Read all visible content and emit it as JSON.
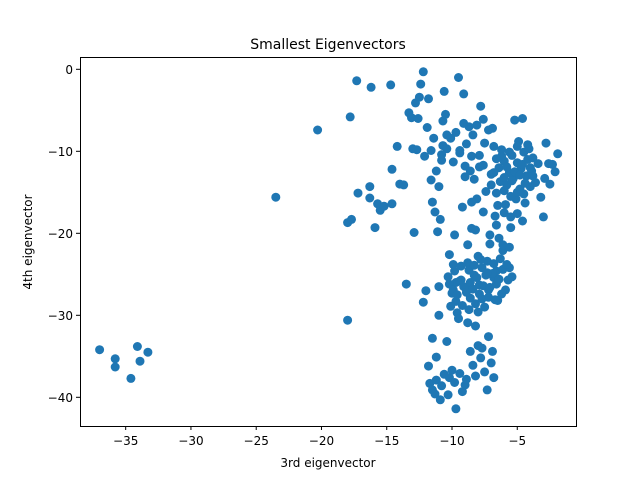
{
  "chart_data": {
    "type": "scatter",
    "title": "Smallest Eigenvectors",
    "xlabel": "3rd eigenvector",
    "ylabel": "4th eigenvector",
    "xlim": [
      -38.5,
      -0.5
    ],
    "ylim": [
      -43.5,
      1.5
    ],
    "xticks": [
      -35,
      -30,
      -25,
      -20,
      -15,
      -10,
      -5
    ],
    "xtick_labels": [
      "−35",
      "−30",
      "−25",
      "−20",
      "−15",
      "−10",
      "−5"
    ],
    "yticks": [
      0,
      -10,
      -20,
      -30,
      -40
    ],
    "ytick_labels": [
      "0",
      "−10",
      "−20",
      "−30",
      "−40"
    ],
    "grid": false,
    "color": "#1f77b4",
    "points": [
      [
        -37.0,
        -34.2
      ],
      [
        -35.8,
        -35.3
      ],
      [
        -35.8,
        -36.3
      ],
      [
        -34.6,
        -37.7
      ],
      [
        -34.1,
        -33.8
      ],
      [
        -33.9,
        -35.6
      ],
      [
        -33.3,
        -34.5
      ],
      [
        -23.5,
        -15.6
      ],
      [
        -20.3,
        -7.4
      ],
      [
        -18.0,
        -18.7
      ],
      [
        -17.7,
        -18.3
      ],
      [
        -17.8,
        -5.8
      ],
      [
        -18.0,
        -30.6
      ],
      [
        -17.3,
        -1.4
      ],
      [
        -17.2,
        -15.1
      ],
      [
        -16.3,
        -14.3
      ],
      [
        -16.3,
        -15.7
      ],
      [
        -16.2,
        -2.2
      ],
      [
        -15.9,
        -19.3
      ],
      [
        -15.7,
        -16.4
      ],
      [
        -15.5,
        -17.2
      ],
      [
        -15.2,
        -16.7
      ],
      [
        -14.7,
        -1.9
      ],
      [
        -14.6,
        -16.4
      ],
      [
        -14.6,
        -12.2
      ],
      [
        -14.2,
        -9.4
      ],
      [
        -14.0,
        -14.0
      ],
      [
        -13.7,
        -14.1
      ],
      [
        -13.5,
        -26.2
      ],
      [
        -13.3,
        -5.3
      ],
      [
        -13.1,
        -5.9
      ],
      [
        -13.0,
        -9.7
      ],
      [
        -12.9,
        -19.9
      ],
      [
        -12.8,
        -4.1
      ],
      [
        -12.7,
        -9.8
      ],
      [
        -12.6,
        -6.0
      ],
      [
        -12.5,
        -3.4
      ],
      [
        -12.4,
        -1.8
      ],
      [
        -12.2,
        -28.4
      ],
      [
        -12.2,
        -0.3
      ],
      [
        -12.1,
        -10.6
      ],
      [
        -12.0,
        -27.0
      ],
      [
        -11.9,
        -7.1
      ],
      [
        -11.8,
        -3.6
      ],
      [
        -11.6,
        -9.9
      ],
      [
        -11.5,
        -32.8
      ],
      [
        -11.4,
        -8.4
      ],
      [
        -11.2,
        -35.1
      ],
      [
        -11.8,
        -36.2
      ],
      [
        -11.7,
        -38.3
      ],
      [
        -11.5,
        -39.1
      ],
      [
        -11.3,
        -39.6
      ],
      [
        -11.2,
        -37.9
      ],
      [
        -10.9,
        -40.3
      ],
      [
        -10.8,
        -38.6
      ],
      [
        -10.6,
        -37.2
      ],
      [
        -10.4,
        -33.2
      ],
      [
        -10.3,
        -39.7
      ],
      [
        -10.2,
        -37.6
      ],
      [
        -10.0,
        -36.7
      ],
      [
        -9.8,
        -38.2
      ],
      [
        -9.7,
        -41.4
      ],
      [
        -9.4,
        -37.1
      ],
      [
        -9.2,
        -39.3
      ],
      [
        -9.0,
        -38.5
      ],
      [
        -8.9,
        -37.8
      ],
      [
        -8.6,
        -34.4
      ],
      [
        -8.4,
        -36.1
      ],
      [
        -8.2,
        -37.4
      ],
      [
        -8.0,
        -33.7
      ],
      [
        -7.8,
        -35.2
      ],
      [
        -7.7,
        -34.0
      ],
      [
        -7.5,
        -36.9
      ],
      [
        -7.3,
        -39.1
      ],
      [
        -7.2,
        -32.6
      ],
      [
        -7.0,
        -35.8
      ],
      [
        -6.9,
        -34.4
      ],
      [
        -6.8,
        -37.6
      ],
      [
        -11.6,
        -13.5
      ],
      [
        -11.5,
        -16.2
      ],
      [
        -11.3,
        -17.4
      ],
      [
        -11.1,
        -19.8
      ],
      [
        -11.0,
        -26.5
      ],
      [
        -11.0,
        -30.0
      ],
      [
        -10.9,
        -18.3
      ],
      [
        -10.8,
        -11.1
      ],
      [
        -10.7,
        -9.3
      ],
      [
        -10.7,
        -6.3
      ],
      [
        -10.6,
        -2.7
      ],
      [
        -10.5,
        -5.5
      ],
      [
        -10.4,
        -8.0
      ],
      [
        -10.3,
        -25.3
      ],
      [
        -10.2,
        -22.6
      ],
      [
        -10.1,
        -28.9
      ],
      [
        -10.0,
        -27.3
      ],
      [
        -9.9,
        -23.8
      ],
      [
        -9.8,
        -20.2
      ],
      [
        -9.7,
        -26.0
      ],
      [
        -9.6,
        -29.7
      ],
      [
        -9.5,
        -1.0
      ],
      [
        -9.4,
        -10.2
      ],
      [
        -9.3,
        -25.7
      ],
      [
        -9.2,
        -16.8
      ],
      [
        -9.1,
        -3.0
      ],
      [
        -9.0,
        -13.1
      ],
      [
        -8.9,
        -26.8
      ],
      [
        -8.8,
        -21.4
      ],
      [
        -8.7,
        -24.5
      ],
      [
        -8.6,
        -27.9
      ],
      [
        -8.5,
        -19.4
      ],
      [
        -8.4,
        -8.0
      ],
      [
        -8.3,
        -25.1
      ],
      [
        -8.2,
        -31.3
      ],
      [
        -8.1,
        -15.8
      ],
      [
        -8.0,
        -22.8
      ],
      [
        -7.9,
        -26.3
      ],
      [
        -7.8,
        -4.5
      ],
      [
        -7.7,
        -24.2
      ],
      [
        -7.6,
        -11.7
      ],
      [
        -7.5,
        -29.0
      ],
      [
        -7.4,
        -14.9
      ],
      [
        -7.3,
        -23.4
      ],
      [
        -7.2,
        -26.9
      ],
      [
        -7.1,
        -21.3
      ],
      [
        -7.0,
        -12.8
      ],
      [
        -6.9,
        -7.2
      ],
      [
        -6.8,
        -25.4
      ],
      [
        -6.7,
        -17.9
      ],
      [
        -6.6,
        -24.6
      ],
      [
        -6.5,
        -28.2
      ],
      [
        -6.4,
        -20.6
      ],
      [
        -6.3,
        -13.7
      ],
      [
        -6.2,
        -9.8
      ],
      [
        -6.1,
        -22.1
      ],
      [
        -6.0,
        -11.2
      ],
      [
        -5.9,
        -16.5
      ],
      [
        -5.8,
        -14.1
      ],
      [
        -5.7,
        -25.7
      ],
      [
        -5.6,
        -12.6
      ],
      [
        -5.5,
        -19.3
      ],
      [
        -5.4,
        -10.5
      ],
      [
        -5.3,
        -13.3
      ],
      [
        -5.2,
        -6.2
      ],
      [
        -5.1,
        -15.8
      ],
      [
        -5.0,
        -11.4
      ],
      [
        -4.9,
        -8.8
      ],
      [
        -4.8,
        -14.6
      ],
      [
        -4.7,
        -12.1
      ],
      [
        -4.6,
        -6.0
      ],
      [
        -4.5,
        -10.1
      ],
      [
        -4.4,
        -16.3
      ],
      [
        -4.3,
        -13.0
      ],
      [
        -4.2,
        -11.0
      ],
      [
        -4.1,
        -9.7
      ],
      [
        -4.0,
        -14.3
      ],
      [
        -3.9,
        -12.4
      ],
      [
        -3.8,
        -10.8
      ],
      [
        -3.6,
        -13.8
      ],
      [
        -3.4,
        -11.5
      ],
      [
        -3.2,
        -15.6
      ],
      [
        -3.0,
        -18.0
      ],
      [
        -2.9,
        -13.3
      ],
      [
        -2.8,
        -9.0
      ],
      [
        -2.6,
        -11.5
      ],
      [
        -2.5,
        -14.0
      ],
      [
        -2.3,
        -11.6
      ],
      [
        -2.1,
        -12.5
      ],
      [
        -1.9,
        -10.3
      ],
      [
        -10.2,
        -26.2
      ],
      [
        -9.9,
        -26.9
      ],
      [
        -9.6,
        -27.5
      ],
      [
        -9.4,
        -25.8
      ],
      [
        -9.1,
        -26.5
      ],
      [
        -8.9,
        -27.2
      ],
      [
        -8.6,
        -26.0
      ],
      [
        -8.4,
        -26.8
      ],
      [
        -8.1,
        -25.4
      ],
      [
        -7.9,
        -27.4
      ],
      [
        -7.6,
        -26.4
      ],
      [
        -7.4,
        -25.1
      ],
      [
        -7.1,
        -26.6
      ],
      [
        -6.9,
        -24.9
      ],
      [
        -6.6,
        -26.2
      ],
      [
        -6.4,
        -25.6
      ],
      [
        -6.1,
        -24.4
      ],
      [
        -5.9,
        -26.9
      ],
      [
        -5.6,
        -24.2
      ],
      [
        -5.4,
        -25.3
      ],
      [
        -9.8,
        -24.6
      ],
      [
        -9.3,
        -24.0
      ],
      [
        -8.8,
        -23.6
      ],
      [
        -8.3,
        -23.9
      ],
      [
        -7.8,
        -23.2
      ],
      [
        -7.3,
        -24.8
      ],
      [
        -6.8,
        -23.7
      ],
      [
        -6.3,
        -23.1
      ],
      [
        -5.8,
        -23.8
      ],
      [
        -9.7,
        -28.3
      ],
      [
        -9.2,
        -28.8
      ],
      [
        -8.7,
        -29.3
      ],
      [
        -8.2,
        -28.6
      ],
      [
        -7.7,
        -28.0
      ],
      [
        -7.2,
        -27.8
      ],
      [
        -6.7,
        -28.1
      ],
      [
        -6.2,
        -27.4
      ],
      [
        -9.5,
        -30.4
      ],
      [
        -8.8,
        -30.9
      ],
      [
        -8.0,
        -29.6
      ],
      [
        -6.4,
        -12.0
      ],
      [
        -6.2,
        -10.6
      ],
      [
        -6.0,
        -13.2
      ],
      [
        -5.8,
        -11.9
      ],
      [
        -5.6,
        -10.1
      ],
      [
        -5.4,
        -13.6
      ],
      [
        -5.2,
        -12.5
      ],
      [
        -5.0,
        -9.4
      ],
      [
        -4.8,
        -12.9
      ],
      [
        -4.6,
        -11.6
      ],
      [
        -4.4,
        -13.9
      ],
      [
        -4.2,
        -9.2
      ],
      [
        -4.0,
        -12.0
      ],
      [
        -3.8,
        -13.0
      ],
      [
        -6.6,
        -15.1
      ],
      [
        -6.0,
        -14.8
      ],
      [
        -5.5,
        -15.5
      ],
      [
        -5.0,
        -15.0
      ],
      [
        -4.5,
        -15.2
      ],
      [
        -6.8,
        -9.4
      ],
      [
        -6.6,
        -10.9
      ],
      [
        -7.0,
        -14.1
      ],
      [
        -6.8,
        -12.6
      ],
      [
        -6.5,
        -16.6
      ],
      [
        -6.0,
        -17.5
      ],
      [
        -5.5,
        -18.0
      ],
      [
        -5.0,
        -17.6
      ],
      [
        -4.6,
        -18.5
      ],
      [
        -7.1,
        -20.2
      ],
      [
        -6.6,
        -19.0
      ],
      [
        -6.1,
        -21.4
      ],
      [
        -5.6,
        -21.7
      ],
      [
        -8.2,
        -19.6
      ],
      [
        -7.6,
        -17.4
      ],
      [
        -8.5,
        -16.2
      ],
      [
        -8.3,
        -13.4
      ],
      [
        -7.9,
        -10.5
      ],
      [
        -7.5,
        -9.0
      ],
      [
        -7.2,
        -7.4
      ],
      [
        -7.6,
        -6.1
      ],
      [
        -8.1,
        -6.8
      ],
      [
        -8.7,
        -7.0
      ],
      [
        -9.1,
        -6.6
      ],
      [
        -9.7,
        -7.7
      ],
      [
        -10.1,
        -8.4
      ],
      [
        -10.4,
        -9.7
      ],
      [
        -10.8,
        -10.4
      ],
      [
        -11.2,
        -12.4
      ],
      [
        -11.0,
        -14.3
      ],
      [
        -9.9,
        -11.3
      ],
      [
        -9.4,
        -9.9
      ],
      [
        -8.9,
        -9.1
      ],
      [
        -8.5,
        -10.6
      ],
      [
        -9.0,
        -11.8
      ],
      [
        -8.6,
        -12.4
      ],
      [
        -7.9,
        -11.9
      ]
    ]
  }
}
